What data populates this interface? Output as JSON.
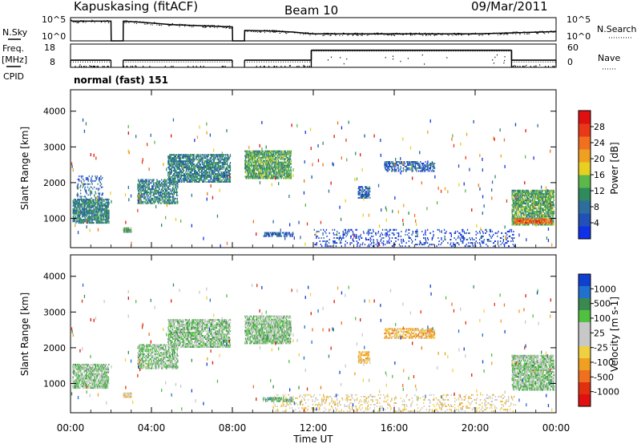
{
  "header": {
    "station": "Kapuskasing (fitACF)",
    "beam": "Beam 10",
    "date": "09/Mar/2011",
    "mode": "normal (fast) 151"
  },
  "left_labels": {
    "nsky": "N.Sky",
    "freq": "Freq.",
    "mhz": "[MHz]",
    "cpid": "CPID"
  },
  "right_labels": {
    "nsearch": "N.Search",
    "nave": "Nave"
  },
  "chart_data": [
    {
      "type": "line",
      "name": "noise-panel",
      "y_left_ticks": [
        "10^5",
        "10^0"
      ],
      "y_right_ticks": [
        "10^5",
        "10^0"
      ],
      "x_hours": [
        0,
        0.1,
        2.0,
        2.01,
        2.6,
        2.61,
        3.5,
        5.0,
        6.5,
        8.0,
        8.01,
        8.6,
        8.61,
        10.0,
        11.0,
        12.0,
        14.0,
        16.0,
        18.0,
        20.0,
        22.0,
        24.0
      ],
      "nsky_level": [
        0.9,
        0.85,
        0.85,
        0.0,
        0.0,
        0.85,
        0.8,
        0.7,
        0.65,
        0.6,
        0.0,
        0.0,
        0.45,
        0.42,
        0.38,
        0.3,
        0.3,
        0.3,
        0.3,
        0.3,
        0.35,
        0.4
      ],
      "gaps_hours": [
        [
          2.0,
          2.6
        ],
        [
          8.0,
          8.6
        ]
      ]
    },
    {
      "type": "line",
      "name": "freq-nave-panel",
      "y_left_ticks": [
        "18",
        "8"
      ],
      "y_right_ticks": [
        "60",
        "0"
      ],
      "freq_segments_hours": [
        [
          0,
          2.0,
          10.3
        ],
        [
          2.6,
          8.0,
          10.3
        ],
        [
          8.6,
          11.9,
          10.3
        ],
        [
          11.9,
          21.8,
          16.3
        ],
        [
          21.8,
          24,
          10.3
        ]
      ],
      "nave_segments_hours": [
        [
          0,
          2.0,
          14
        ],
        [
          2.6,
          8.0,
          14
        ],
        [
          8.6,
          11.9,
          14
        ],
        [
          11.9,
          21.8,
          42
        ],
        [
          21.8,
          24,
          14
        ]
      ]
    },
    {
      "type": "heatmap",
      "name": "power-panel",
      "ylabel": "Slant Range [km]",
      "ylim": [
        180,
        4600
      ],
      "y_ticks": [
        1000,
        2000,
        3000,
        4000
      ],
      "colorbar_label": "Power [dB]",
      "colorbar_ticks": [
        "4",
        "8",
        "12",
        "16",
        "20",
        "24",
        "28"
      ],
      "colorbar_colors": [
        "#1030e8",
        "#2050b8",
        "#2e6e9e",
        "#2f8a5e",
        "#5cb84a",
        "#e8d020",
        "#f0a020",
        "#f07020",
        "#e83818",
        "#e01010"
      ],
      "regions": [
        {
          "t0": 0.1,
          "t1": 1.9,
          "r0": 850,
          "r1": 1550,
          "density": 0.6,
          "level": 3
        },
        {
          "t0": 0.3,
          "t1": 1.6,
          "r0": 1500,
          "r1": 2200,
          "density": 0.15,
          "level": 2
        },
        {
          "t0": 2.6,
          "t1": 3.0,
          "r0": 600,
          "r1": 750,
          "density": 0.8,
          "level": 4
        },
        {
          "t0": 3.3,
          "t1": 5.3,
          "r0": 1400,
          "r1": 2100,
          "density": 0.45,
          "level": 3
        },
        {
          "t0": 4.8,
          "t1": 7.9,
          "r0": 2000,
          "r1": 2800,
          "density": 0.55,
          "level": 3
        },
        {
          "t0": 8.6,
          "t1": 10.9,
          "r0": 2100,
          "r1": 2900,
          "density": 0.6,
          "level": 4
        },
        {
          "t0": 9.5,
          "t1": 11.0,
          "r0": 480,
          "r1": 620,
          "density": 0.5,
          "level": 2
        },
        {
          "t0": 12.0,
          "t1": 22.0,
          "r0": 200,
          "r1": 700,
          "density": 0.12,
          "level": 1
        },
        {
          "t0": 14.2,
          "t1": 14.8,
          "r0": 1550,
          "r1": 1900,
          "density": 0.45,
          "level": 2
        },
        {
          "t0": 15.5,
          "t1": 18.0,
          "r0": 2300,
          "r1": 2600,
          "density": 0.4,
          "level": 2
        },
        {
          "t0": 21.8,
          "t1": 23.9,
          "r0": 800,
          "r1": 1800,
          "density": 0.6,
          "level": 4
        },
        {
          "t0": 21.9,
          "t1": 23.8,
          "r0": 850,
          "r1": 1000,
          "density": 0.7,
          "level": 8
        }
      ]
    },
    {
      "type": "heatmap",
      "name": "velocity-panel",
      "ylabel": "Slant Range [km]",
      "ylim": [
        180,
        4600
      ],
      "y_ticks": [
        1000,
        2000,
        3000,
        4000
      ],
      "colorbar_label": "Velocity [m s-1]",
      "colorbar_ticks": [
        "1000",
        "500",
        "100",
        "25",
        "-25",
        "-100",
        "-500",
        "-1000"
      ],
      "colorbar_colors": [
        "#1040d0",
        "#2070d0",
        "#3a8a50",
        "#50c040",
        "#c8c8c8",
        "#c8c8c8",
        "#f0d040",
        "#f0a020",
        "#f07020",
        "#e03010",
        "#e01010"
      ],
      "regions": [
        {
          "t0": 0.1,
          "t1": 1.9,
          "r0": 850,
          "r1": 1550,
          "density": 0.55,
          "level": 4
        },
        {
          "t0": 2.6,
          "t1": 3.0,
          "r0": 600,
          "r1": 750,
          "density": 0.8,
          "level": 6
        },
        {
          "t0": 3.3,
          "t1": 5.3,
          "r0": 1400,
          "r1": 2100,
          "density": 0.45,
          "level": 4
        },
        {
          "t0": 4.8,
          "t1": 7.9,
          "r0": 2000,
          "r1": 2800,
          "density": 0.55,
          "level": 4
        },
        {
          "t0": 8.6,
          "t1": 10.9,
          "r0": 2100,
          "r1": 2900,
          "density": 0.6,
          "level": 4
        },
        {
          "t0": 9.5,
          "t1": 11.0,
          "r0": 480,
          "r1": 620,
          "density": 0.5,
          "level": 3
        },
        {
          "t0": 10.0,
          "t1": 22.0,
          "r0": 200,
          "r1": 700,
          "density": 0.12,
          "level": 6
        },
        {
          "t0": 14.2,
          "t1": 14.8,
          "r0": 1550,
          "r1": 1900,
          "density": 0.45,
          "level": 7
        },
        {
          "t0": 15.5,
          "t1": 18.0,
          "r0": 2250,
          "r1": 2550,
          "density": 0.45,
          "level": 7
        },
        {
          "t0": 21.8,
          "t1": 23.9,
          "r0": 800,
          "r1": 1800,
          "density": 0.6,
          "level": 4
        }
      ]
    }
  ],
  "x_axis": {
    "label": "Time UT",
    "ticks": [
      "00:00",
      "04:00",
      "08:00",
      "12:00",
      "16:00",
      "20:00",
      "00:00"
    ],
    "xlim_hours": [
      0,
      24
    ]
  }
}
